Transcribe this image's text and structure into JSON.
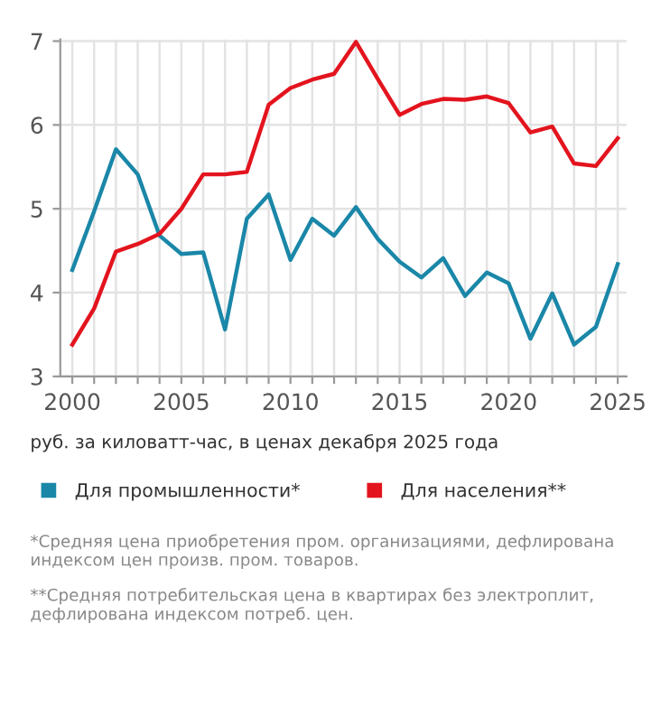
{
  "chart_data": {
    "type": "line",
    "subtitle": "руб. за киловатт-час, в ценах декабря 2025 года",
    "x": [
      2000,
      2001,
      2002,
      2003,
      2004,
      2005,
      2006,
      2007,
      2008,
      2009,
      2010,
      2011,
      2012,
      2013,
      2014,
      2015,
      2016,
      2017,
      2018,
      2019,
      2020,
      2021,
      2022,
      2023,
      2024,
      2025
    ],
    "series": [
      {
        "name": "Для промышленности*",
        "color": "#1a87a8",
        "values": [
          4.27,
          4.97,
          5.71,
          5.41,
          4.68,
          4.46,
          4.48,
          3.56,
          4.88,
          5.17,
          4.39,
          4.88,
          4.68,
          5.02,
          4.64,
          4.37,
          4.18,
          4.41,
          3.96,
          4.24,
          4.11,
          3.45,
          3.99,
          3.38,
          3.59,
          4.34
        ]
      },
      {
        "name": "Для населения**",
        "color": "#e3141e",
        "values": [
          3.38,
          3.81,
          4.49,
          4.58,
          4.7,
          5.0,
          5.41,
          5.41,
          5.44,
          6.24,
          6.44,
          6.54,
          6.61,
          6.99,
          6.55,
          6.12,
          6.25,
          6.31,
          6.3,
          6.34,
          6.26,
          5.91,
          5.98,
          5.54,
          5.51,
          5.84
        ]
      }
    ],
    "xlim": [
      1999.45,
      2025.4
    ],
    "ylim": [
      3,
      7.02
    ],
    "xticks": [
      2000,
      {
        "value": 2001,
        "label": null
      },
      {
        "value": 2002,
        "label": null
      },
      {
        "value": 2003,
        "label": null
      },
      {
        "value": 2004,
        "label": null
      },
      2005,
      {
        "value": 2006,
        "label": null
      },
      {
        "value": 2007,
        "label": null
      },
      {
        "value": 2008,
        "label": null
      },
      {
        "value": 2009,
        "label": null
      },
      2010,
      {
        "value": 2011,
        "label": null
      },
      {
        "value": 2012,
        "label": null
      },
      {
        "value": 2013,
        "label": null
      },
      {
        "value": 2014,
        "label": null
      },
      2015,
      {
        "value": 2016,
        "label": null
      },
      {
        "value": 2017,
        "label": null
      },
      {
        "value": 2018,
        "label": null
      },
      {
        "value": 2019,
        "label": null
      },
      2020,
      {
        "value": 2021,
        "label": null
      },
      {
        "value": 2022,
        "label": null
      },
      {
        "value": 2023,
        "label": null
      },
      {
        "value": 2024,
        "label": null
      },
      2025
    ],
    "yticks": [
      3,
      4,
      5,
      6,
      7
    ],
    "grid": true,
    "legend": "bottom",
    "marker": "none",
    "line_style": "solid",
    "annotations": [
      "*Средняя цена приобретения пром. организациями, дефлирована индексом цен произв. пром. товаров.",
      "**Средняя потребительская цена в квартирах без электроплит, дефлирована индексом потреб. цен."
    ]
  }
}
